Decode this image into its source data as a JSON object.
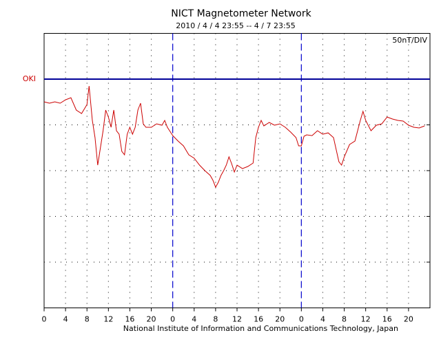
{
  "chart_data": {
    "type": "line",
    "title": "NICT Magnetometer Network",
    "subtitle": "2010 / 4 / 4  23:55 --  4 / 7  23:55",
    "scale_label": "50nT/DIV",
    "footer": "National Institute of Information and Communications Technology, Japan",
    "baseline": 0,
    "xlim": [
      0,
      72
    ],
    "ylim": [
      -250,
      50
    ],
    "ygrid": [
      -200,
      -150,
      -100,
      -50
    ],
    "grid": true,
    "xticks": [
      0,
      4,
      8,
      12,
      16,
      20,
      {
        "value": 24,
        "label": "0"
      },
      {
        "value": 28,
        "label": "4"
      },
      {
        "value": 32,
        "label": "8"
      },
      {
        "value": 36,
        "label": "12"
      },
      {
        "value": 40,
        "label": "16"
      },
      {
        "value": 44,
        "label": "20"
      },
      {
        "value": 48,
        "label": "0"
      },
      {
        "value": 52,
        "label": "4"
      },
      {
        "value": 56,
        "label": "8"
      },
      {
        "value": 60,
        "label": "12"
      },
      {
        "value": 64,
        "label": "16"
      },
      {
        "value": 68,
        "label": "20"
      }
    ],
    "x": [
      0,
      1,
      2,
      3,
      4,
      5,
      6,
      7,
      8,
      8.4,
      9,
      9.5,
      10,
      10.5,
      11,
      11.5,
      12,
      12.5,
      13,
      13.5,
      14,
      14.5,
      15,
      15.5,
      16,
      16.5,
      17,
      17.5,
      18,
      18.5,
      19,
      20,
      21,
      22,
      22.5,
      23,
      24,
      25,
      26,
      27,
      28,
      29,
      30,
      31,
      31.5,
      32,
      32.5,
      33,
      33.5,
      34,
      34.5,
      35,
      35.5,
      36,
      37,
      38,
      39,
      39.5,
      40,
      40.5,
      41,
      42,
      43,
      44,
      45,
      46,
      47,
      47.5,
      48,
      48.5,
      49,
      50,
      51,
      52,
      53,
      54,
      55,
      55.5,
      56,
      57,
      58,
      59,
      59.5,
      60,
      61,
      62,
      63,
      64,
      65,
      66,
      67,
      68,
      69,
      70,
      71
    ],
    "series": [
      {
        "name": "OKI",
        "color": "#cc0000",
        "values": [
          -24.8,
          -26.3,
          -24.8,
          -26.3,
          -22.6,
          -20.3,
          -33.8,
          -37.6,
          -27.8,
          -7.5,
          -45.1,
          -63.9,
          -94.0,
          -75.2,
          -56.4,
          -33.8,
          -41.4,
          -52.6,
          -33.8,
          -56.4,
          -60.2,
          -79.0,
          -82.7,
          -60.2,
          -52.6,
          -60.2,
          -52.6,
          -33.8,
          -26.3,
          -48.9,
          -52.6,
          -52.6,
          -48.9,
          -50.4,
          -45.1,
          -52.6,
          -61.7,
          -67.7,
          -72.9,
          -82.7,
          -86.5,
          -94.0,
          -100.0,
          -105.3,
          -110.5,
          -118.1,
          -112.8,
          -105.3,
          -100.0,
          -94.0,
          -85.0,
          -92.5,
          -101.5,
          -94.0,
          -97.8,
          -95.5,
          -91.7,
          -63.9,
          -52.6,
          -45.1,
          -51.1,
          -47.4,
          -50.4,
          -48.9,
          -52.6,
          -57.9,
          -63.9,
          -72.9,
          -72.9,
          -62.4,
          -60.9,
          -61.7,
          -56.4,
          -60.2,
          -58.7,
          -63.9,
          -90.2,
          -94.0,
          -85.0,
          -71.4,
          -67.7,
          -45.1,
          -35.3,
          -45.1,
          -56.4,
          -50.4,
          -48.9,
          -41.4,
          -43.6,
          -45.1,
          -45.9,
          -50.4,
          -52.6,
          -53.4,
          -51.1
        ]
      }
    ]
  }
}
